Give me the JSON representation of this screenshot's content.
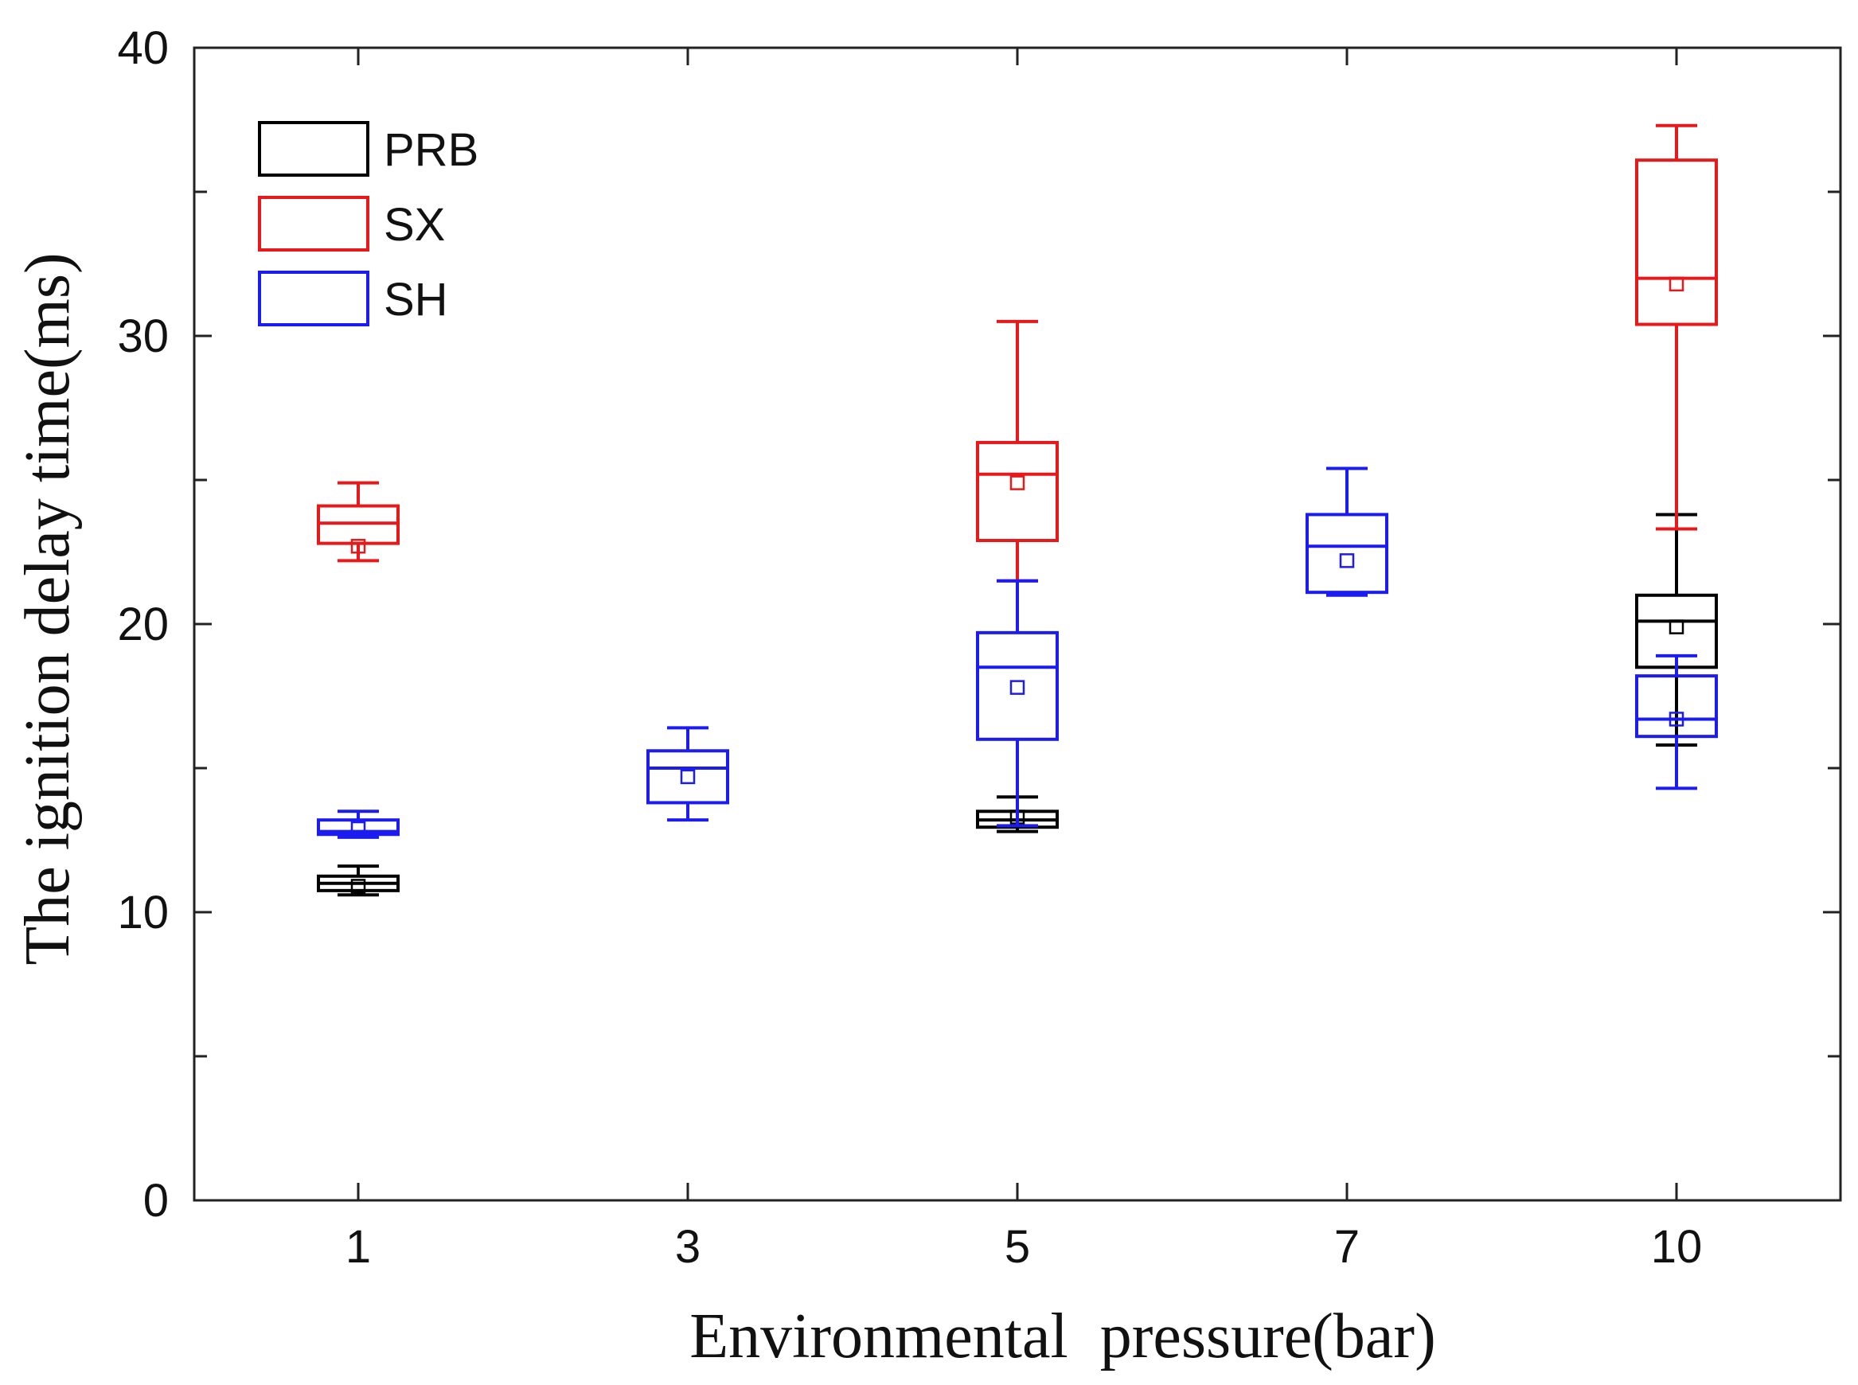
{
  "chart_data": {
    "type": "box",
    "xlabel": "Environmental  pressure(bar)",
    "ylabel": "The ignition delay time(ms)",
    "categories": [
      "1",
      "3",
      "5",
      "7",
      "10"
    ],
    "ylim": [
      0,
      40
    ],
    "y_ticks": [
      "0",
      "10",
      "20",
      "30",
      "40"
    ],
    "y_tick_values": [
      0,
      10,
      20,
      30,
      40
    ],
    "grid": false,
    "legend_position": "top-left",
    "series": [
      {
        "name": "PRB",
        "color": "#000000",
        "boxes": [
          {
            "category": "1",
            "min": 10.6,
            "q1": 10.75,
            "median": 11.0,
            "q3": 11.25,
            "max": 11.6,
            "mean": 10.9
          },
          {
            "category": "5",
            "min": 12.8,
            "q1": 12.95,
            "median": 13.2,
            "q3": 13.5,
            "max": 14.0,
            "mean": 13.3
          },
          {
            "category": "10",
            "min": 15.8,
            "q1": 18.5,
            "median": 20.1,
            "q3": 21.0,
            "max": 23.8,
            "mean": 19.9
          }
        ]
      },
      {
        "name": "SX",
        "color": "#e8191b",
        "boxes": [
          {
            "category": "1",
            "min": 22.2,
            "q1": 22.8,
            "median": 23.5,
            "q3": 24.1,
            "max": 24.9,
            "mean": 22.7
          },
          {
            "category": "5",
            "min": 21.5,
            "q1": 22.9,
            "median": 25.2,
            "q3": 26.3,
            "max": 30.5,
            "mean": 24.9
          },
          {
            "category": "10",
            "min": 23.3,
            "q1": 30.4,
            "median": 32.0,
            "q3": 36.1,
            "max": 37.3,
            "mean": 31.8
          }
        ]
      },
      {
        "name": "SH",
        "color": "#1c1cf0",
        "boxes": [
          {
            "category": "1",
            "min": 12.6,
            "q1": 12.7,
            "median": 12.8,
            "q3": 13.2,
            "max": 13.5,
            "mean": 12.9
          },
          {
            "category": "3",
            "min": 13.2,
            "q1": 13.8,
            "median": 15.0,
            "q3": 15.6,
            "max": 16.4,
            "mean": 14.7
          },
          {
            "category": "5",
            "min": 13.0,
            "q1": 16.0,
            "median": 18.5,
            "q3": 19.7,
            "max": 21.5,
            "mean": 17.8
          },
          {
            "category": "7",
            "min": 21.0,
            "q1": 21.1,
            "median": 22.7,
            "q3": 23.8,
            "max": 25.4,
            "mean": 22.2
          },
          {
            "category": "10",
            "min": 14.3,
            "q1": 16.1,
            "median": 16.7,
            "q3": 18.2,
            "max": 18.9,
            "mean": 16.7
          }
        ]
      }
    ]
  }
}
